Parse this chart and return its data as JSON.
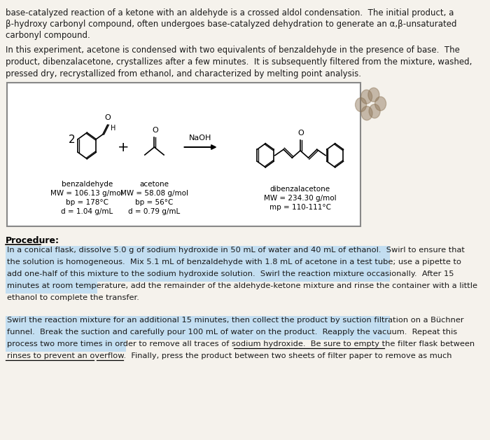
{
  "bg_color": "#e8e4dc",
  "page_bg": "#f5f2ec",
  "procedure_header": "Procedure:",
  "box_bg": "#ffffff",
  "box_border": "#888888",
  "reagent1_name": "benzaldehyde",
  "reagent1_mw": "MW = 106.13 g/mol",
  "reagent1_bp": "bp = 178°C",
  "reagent1_d": "d = 1.04 g/mL",
  "reagent2_name": "acetone",
  "reagent2_mw": "MW = 58.08 g/mol",
  "reagent2_bp": "bp = 56°C",
  "reagent2_d": "d = 0.79 g/mL",
  "product_name": "dibenzalacetone",
  "product_mw": "MW = 234.30 g/mol",
  "product_mp": "mp = 110-111°C",
  "reagent_coeff": "2",
  "arrow_label": "NaOH",
  "highlight_color": "#a8d4f5",
  "top_lines": [
    "base-catalyzed reaction of a ketone with an aldehyde is a crossed aldol condensation.  The initial product, a",
    "β-hydroxy carbonyl compound, often undergoes base-catalyzed dehydration to generate an α,β-unsaturated",
    "carbonyl compound."
  ],
  "intro_lines": [
    "In this experiment, acetone is condensed with two equivalents of benzaldehyde in the presence of base.  The",
    "product, dibenzalacetone, crystallizes after a few minutes.  It is subsequently filtered from the mixture, washed,",
    "pressed dry, recrystallized from ethanol, and characterized by melting point analysis."
  ],
  "p1_lines": [
    "In a conical flask, dissolve 5.0 g of sodium hydroxide in 50 mL of water and 40 mL of ethanol.  Swirl to ensure that",
    "the solution is homogeneous.  Mix 5.1 mL of benzaldehyde with 1.8 mL of acetone in a test tube; use a pipette to",
    "add one-half of this mixture to the sodium hydroxide solution.  Swirl the reaction mixture occasionally.  After 15",
    "minutes at room temperature, add the remainder of the aldehyde-ketone mixture and rinse the container with a little",
    "ethanol to complete the transfer."
  ],
  "p2_lines": [
    "Swirl the reaction mixture for an additional 15 minutes, then collect the product by suction filtration on a Büchner",
    "funnel.  Break the suction and carefully pour 100 mL of water on the product.  Reapply the vacuum.  Repeat this",
    "process two more times in order to remove all traces of sodium hydroxide.  Be sure to empty the filter flask between",
    "rinses to prevent an overflow.  Finally, press the product between two sheets of filter paper to remove as much"
  ]
}
